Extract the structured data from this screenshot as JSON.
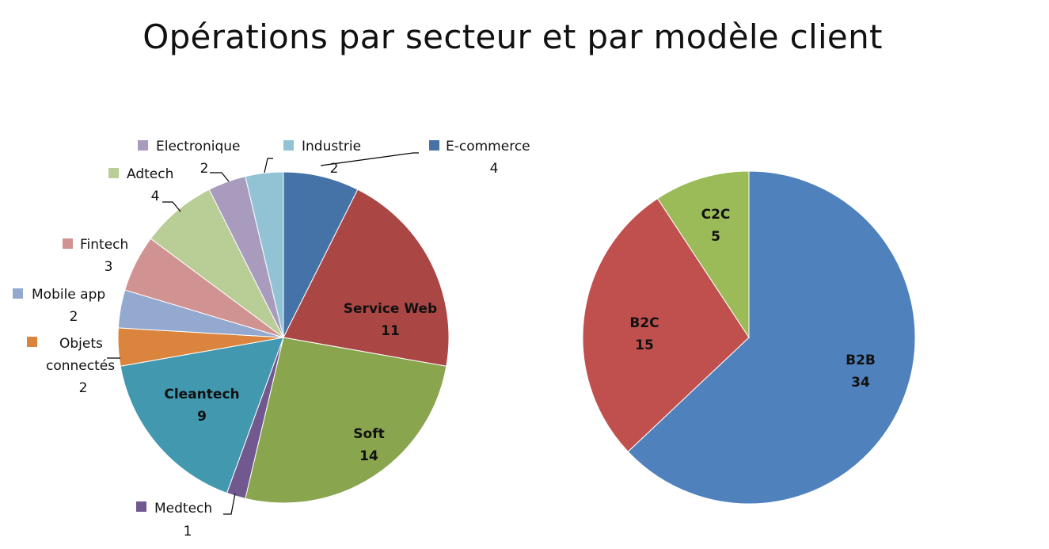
{
  "title": "Opérations par secteur et par modèle client",
  "chart_data": [
    {
      "type": "pie",
      "name": "Secteur",
      "slices": [
        {
          "label": "E-commerce",
          "value": 4,
          "color": "#4572A7",
          "label_pos": "legend"
        },
        {
          "label": "Service Web",
          "value": 11,
          "color": "#AA4643",
          "label_pos": "inside"
        },
        {
          "label": "Soft",
          "value": 14,
          "color": "#89A54E",
          "label_pos": "inside"
        },
        {
          "label": "Medtech",
          "value": 1,
          "color": "#71588F",
          "label_pos": "legend"
        },
        {
          "label": "Cleantech",
          "value": 9,
          "color": "#4198AF",
          "label_pos": "inside"
        },
        {
          "label": "Objets connectés",
          "value": 2,
          "color": "#DB843D",
          "label_pos": "legend"
        },
        {
          "label": "Mobile app",
          "value": 2,
          "color": "#93A9CF",
          "label_pos": "legend"
        },
        {
          "label": "Fintech",
          "value": 3,
          "color": "#D19392",
          "label_pos": "legend"
        },
        {
          "label": "Adtech",
          "value": 4,
          "color": "#B9CD96",
          "label_pos": "legend"
        },
        {
          "label": "Electronique",
          "value": 2,
          "color": "#A99BBD",
          "label_pos": "legend"
        },
        {
          "label": "Industrie",
          "value": 2,
          "color": "#91C3D5",
          "label_pos": "legend"
        }
      ]
    },
    {
      "type": "pie",
      "name": "Modèle client",
      "slices": [
        {
          "label": "B2B",
          "value": 34,
          "color": "#4F81BD"
        },
        {
          "label": "B2C",
          "value": 15,
          "color": "#C0504D"
        },
        {
          "label": "C2C",
          "value": 5,
          "color": "#9BBB59"
        }
      ]
    }
  ]
}
